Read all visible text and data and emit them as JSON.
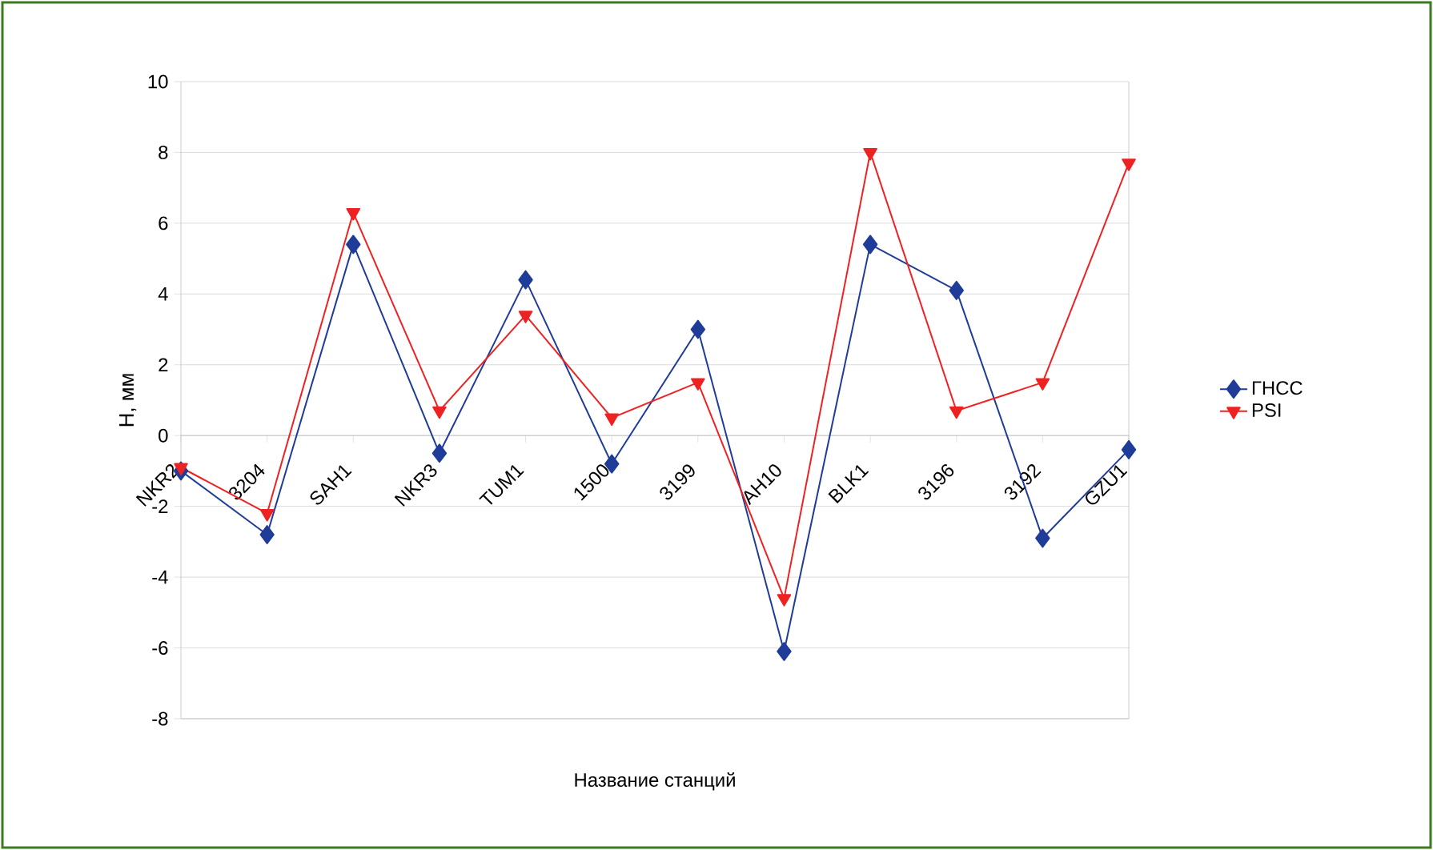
{
  "chart_data": {
    "type": "line",
    "xlabel": "Название станций",
    "ylabel": "Н, мм",
    "categories": [
      "NKR2",
      "3204",
      "SAH1",
      "NKR3",
      "TUM1",
      "1500",
      "3199",
      "AH10",
      "BLK1",
      "3196",
      "3192",
      "GZU1"
    ],
    "series": [
      {
        "name": "ГНСС",
        "color": "#1f3c99",
        "marker": "diamond",
        "values": [
          -1.0,
          -2.8,
          5.4,
          -0.5,
          4.4,
          -0.8,
          3.0,
          -6.1,
          5.4,
          4.1,
          -2.9,
          -0.4
        ]
      },
      {
        "name": "PSI",
        "color": "#ee2222",
        "marker": "triangle",
        "values": [
          -0.9,
          -2.2,
          6.3,
          0.7,
          3.4,
          0.5,
          1.5,
          -4.6,
          8.0,
          0.7,
          1.5,
          7.7
        ]
      }
    ],
    "ylim": [
      -8,
      10
    ],
    "yticks": [
      -8,
      -6,
      -4,
      -2,
      0,
      2,
      4,
      6,
      8,
      10
    ],
    "grid": "y",
    "legend": "right"
  }
}
